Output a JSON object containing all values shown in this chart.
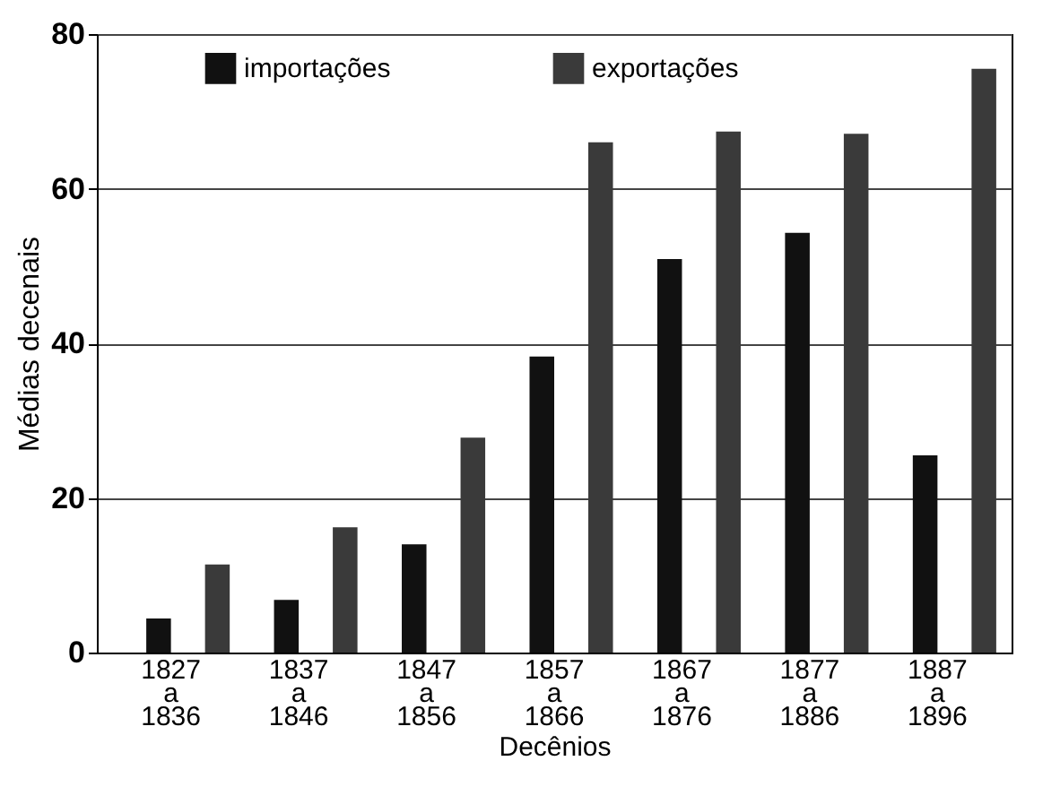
{
  "chart_data": {
    "type": "bar",
    "xlabel": "Decênios",
    "ylabel": "Médias decenais",
    "categories": [
      "1827 a 1836",
      "1837 a 1846",
      "1847 a 1856",
      "1857 a 1866",
      "1867 a 1876",
      "1877 a 1886",
      "1887 a 1896"
    ],
    "series": [
      {
        "name": "importações",
        "color": "#111111",
        "values": [
          4.4,
          6.8,
          14.0,
          38.3,
          50.9,
          54.3,
          25.5
        ]
      },
      {
        "name": "exportações",
        "color": "#3a3a3a",
        "values": [
          11.4,
          16.2,
          27.8,
          66.0,
          67.4,
          67.1,
          75.5
        ]
      }
    ],
    "ylim": [
      0,
      80
    ],
    "yticks": [
      0,
      20,
      40,
      60,
      80
    ],
    "grid": "y",
    "legend": "top"
  }
}
